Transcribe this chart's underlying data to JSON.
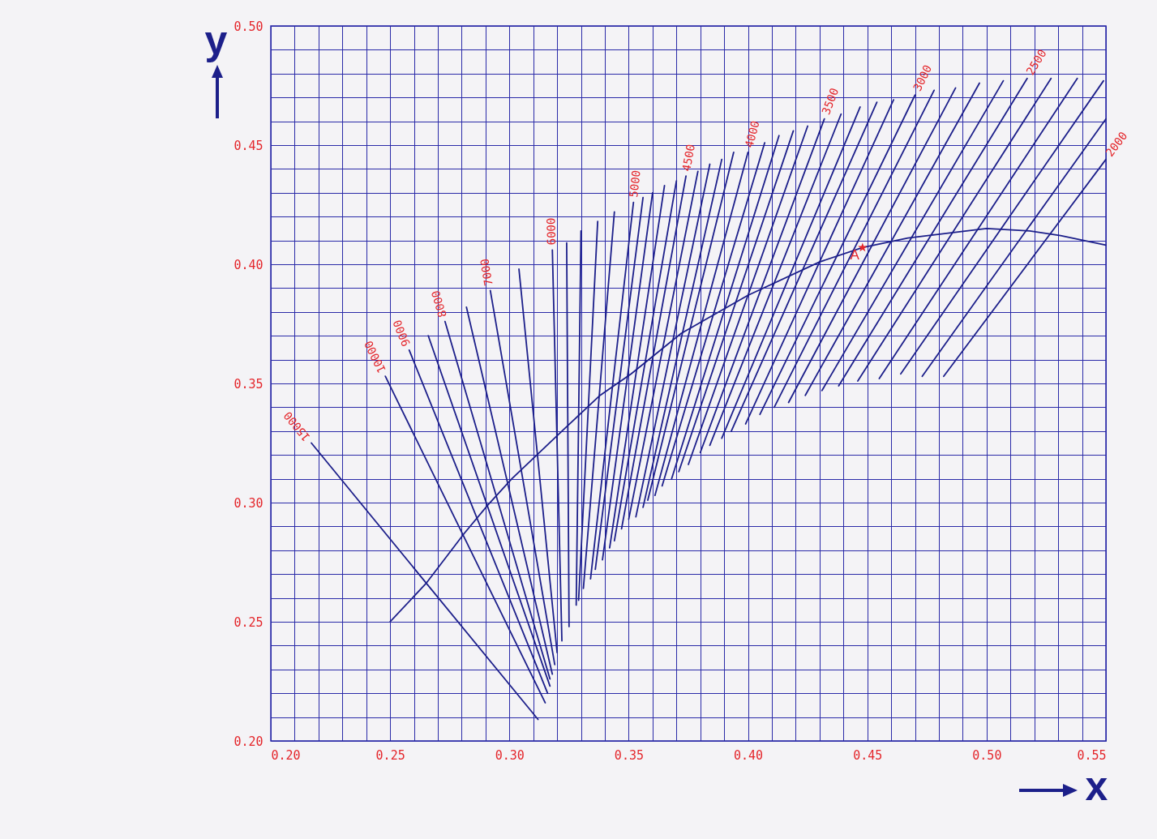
{
  "chart_data": {
    "type": "line",
    "xlabel": "x",
    "ylabel": "y",
    "xlim": [
      0.2,
      0.55
    ],
    "ylim": [
      0.2,
      0.5
    ],
    "xticks": [
      {
        "value": 0.2,
        "label": "0.20"
      },
      {
        "value": 0.21,
        "label": null
      },
      {
        "value": 0.22,
        "label": null
      },
      {
        "value": 0.23,
        "label": null
      },
      {
        "value": 0.24,
        "label": null
      },
      0.25,
      {
        "value": 0.26,
        "label": null
      },
      {
        "value": 0.27,
        "label": null
      },
      {
        "value": 0.28,
        "label": null
      },
      {
        "value": 0.29,
        "label": null
      },
      {
        "value": 0.3,
        "label": "0.30"
      },
      {
        "value": 0.31,
        "label": null
      },
      {
        "value": 0.32,
        "label": null
      },
      {
        "value": 0.33,
        "label": null
      },
      {
        "value": 0.34,
        "label": null
      },
      0.35,
      {
        "value": 0.36,
        "label": null
      },
      {
        "value": 0.37,
        "label": null
      },
      {
        "value": 0.38,
        "label": null
      },
      {
        "value": 0.39,
        "label": null
      },
      {
        "value": 0.4,
        "label": "0.40"
      },
      {
        "value": 0.41,
        "label": null
      },
      {
        "value": 0.42,
        "label": null
      },
      {
        "value": 0.43,
        "label": null
      },
      {
        "value": 0.44,
        "label": null
      },
      0.45,
      {
        "value": 0.46,
        "label": null
      },
      {
        "value": 0.47,
        "label": null
      },
      {
        "value": 0.48,
        "label": null
      },
      {
        "value": 0.49,
        "label": null
      },
      {
        "value": 0.5,
        "label": "0.50"
      },
      {
        "value": 0.51,
        "label": null
      },
      {
        "value": 0.52,
        "label": null
      },
      {
        "value": 0.53,
        "label": null
      },
      {
        "value": 0.54,
        "label": null
      },
      0.55
    ],
    "yticks": [
      {
        "value": 0.2,
        "label": "0.20"
      },
      {
        "value": 0.21,
        "label": null
      },
      {
        "value": 0.22,
        "label": null
      },
      {
        "value": 0.23,
        "label": null
      },
      {
        "value": 0.24,
        "label": null
      },
      0.25,
      {
        "value": 0.26,
        "label": null
      },
      {
        "value": 0.27,
        "label": null
      },
      {
        "value": 0.28,
        "label": null
      },
      {
        "value": 0.29,
        "label": null
      },
      {
        "value": 0.3,
        "label": "0.30"
      },
      {
        "value": 0.31,
        "label": null
      },
      {
        "value": 0.32,
        "label": null
      },
      {
        "value": 0.33,
        "label": null
      },
      {
        "value": 0.34,
        "label": null
      },
      0.35,
      {
        "value": 0.36,
        "label": null
      },
      {
        "value": 0.37,
        "label": null
      },
      {
        "value": 0.38,
        "label": null
      },
      {
        "value": 0.39,
        "label": null
      },
      {
        "value": 0.4,
        "label": "0.40"
      },
      {
        "value": 0.41,
        "label": null
      },
      {
        "value": 0.42,
        "label": null
      },
      {
        "value": 0.43,
        "label": null
      },
      {
        "value": 0.44,
        "label": null
      },
      0.45,
      {
        "value": 0.46,
        "label": null
      },
      {
        "value": 0.47,
        "label": null
      },
      {
        "value": 0.48,
        "label": null
      },
      {
        "value": 0.49,
        "label": null
      },
      {
        "value": 0.5,
        "label": "0.50"
      }
    ],
    "grid": true,
    "legend": false,
    "line_style": "solid",
    "annotations": [
      {
        "text": "A",
        "x": 0.448,
        "y": 0.407
      }
    ],
    "series": [
      {
        "color": "#1c1f8a",
        "x": [
          0.25,
          0.265,
          0.281,
          0.291,
          0.301,
          0.322,
          0.338,
          0.351,
          0.372,
          0.4,
          0.43,
          0.448,
          0.467,
          0.5,
          0.518,
          0.531,
          0.55
        ],
        "values": [
          0.25,
          0.266,
          0.287,
          0.299,
          0.31,
          0.33,
          0.345,
          0.354,
          0.371,
          0.387,
          0.401,
          0.407,
          0.411,
          0.415,
          0.414,
          0.412,
          0.408
        ]
      },
      {
        "name": "15000",
        "color": "#1c1f8a",
        "x": [
          0.312,
          0.217
        ],
        "values": [
          0.209,
          0.325
        ]
      },
      {
        "name": "10000",
        "color": "#1c1f8a",
        "x": [
          0.315,
          0.248
        ],
        "values": [
          0.216,
          0.353
        ]
      },
      {
        "name": "9000",
        "color": "#1c1f8a",
        "x": [
          0.316,
          0.258
        ],
        "values": [
          0.22,
          0.364
        ]
      },
      {
        "color": "#1c1f8a",
        "x": [
          0.317,
          0.266
        ],
        "values": [
          0.223,
          0.37
        ]
      },
      {
        "name": "8000",
        "color": "#1c1f8a",
        "x": [
          0.317,
          0.273
        ],
        "values": [
          0.226,
          0.376
        ]
      },
      {
        "color": "#1c1f8a",
        "x": [
          0.318,
          0.282
        ],
        "values": [
          0.228,
          0.382
        ]
      },
      {
        "name": "7000",
        "color": "#1c1f8a",
        "x": [
          0.319,
          0.292
        ],
        "values": [
          0.232,
          0.389
        ]
      },
      {
        "color": "#1c1f8a",
        "x": [
          0.32,
          0.304
        ],
        "values": [
          0.237,
          0.398
        ]
      },
      {
        "name": "6000",
        "color": "#1c1f8a",
        "x": [
          0.322,
          0.318
        ],
        "values": [
          0.242,
          0.406
        ]
      },
      {
        "color": "#1c1f8a",
        "x": [
          0.325,
          0.324
        ],
        "values": [
          0.248,
          0.409
        ]
      },
      {
        "color": "#1c1f8a",
        "x": [
          0.328,
          0.33
        ],
        "values": [
          0.257,
          0.414
        ]
      },
      {
        "color": "#1c1f8a",
        "x": [
          0.329,
          0.337
        ],
        "values": [
          0.259,
          0.418
        ]
      },
      {
        "color": "#1c1f8a",
        "x": [
          0.331,
          0.344
        ],
        "values": [
          0.264,
          0.422
        ]
      },
      {
        "name": "5000",
        "color": "#1c1f8a",
        "x": [
          0.334,
          0.352
        ],
        "values": [
          0.268,
          0.426
        ]
      },
      {
        "color": "#1c1f8a",
        "x": [
          0.336,
          0.356
        ],
        "values": [
          0.272,
          0.428
        ]
      },
      {
        "color": "#1c1f8a",
        "x": [
          0.339,
          0.36
        ],
        "values": [
          0.276,
          0.43
        ]
      },
      {
        "color": "#1c1f8a",
        "x": [
          0.342,
          0.365
        ],
        "values": [
          0.281,
          0.433
        ]
      },
      {
        "color": "#1c1f8a",
        "x": [
          0.344,
          0.37
        ],
        "values": [
          0.284,
          0.435
        ]
      },
      {
        "name": "4500",
        "color": "#1c1f8a",
        "x": [
          0.347,
          0.374
        ],
        "values": [
          0.289,
          0.437
        ]
      },
      {
        "color": "#1c1f8a",
        "x": [
          0.35,
          0.379
        ],
        "values": [
          0.293,
          0.439
        ]
      },
      {
        "color": "#1c1f8a",
        "x": [
          0.353,
          0.384
        ],
        "values": [
          0.294,
          0.442
        ]
      },
      {
        "color": "#1c1f8a",
        "x": [
          0.356,
          0.389
        ],
        "values": [
          0.298,
          0.444
        ]
      },
      {
        "color": "#1c1f8a",
        "x": [
          0.358,
          0.394
        ],
        "values": [
          0.301,
          0.447
        ]
      },
      {
        "name": "4000",
        "color": "#1c1f8a",
        "x": [
          0.361,
          0.4
        ],
        "values": [
          0.303,
          0.447
        ]
      },
      {
        "color": "#1c1f8a",
        "x": [
          0.364,
          0.407
        ],
        "values": [
          0.307,
          0.451
        ]
      },
      {
        "color": "#1c1f8a",
        "x": [
          0.368,
          0.413
        ],
        "values": [
          0.31,
          0.454
        ]
      },
      {
        "color": "#1c1f8a",
        "x": [
          0.371,
          0.419
        ],
        "values": [
          0.313,
          0.456
        ]
      },
      {
        "color": "#1c1f8a",
        "x": [
          0.375,
          0.425
        ],
        "values": [
          0.316,
          0.458
        ]
      },
      {
        "name": "3500",
        "color": "#1c1f8a",
        "x": [
          0.38,
          0.432
        ],
        "values": [
          0.321,
          0.461
        ]
      },
      {
        "color": "#1c1f8a",
        "x": [
          0.384,
          0.439
        ],
        "values": [
          0.324,
          0.463
        ]
      },
      {
        "color": "#1c1f8a",
        "x": [
          0.389,
          0.447
        ],
        "values": [
          0.327,
          0.466
        ]
      },
      {
        "color": "#1c1f8a",
        "x": [
          0.393,
          0.454
        ],
        "values": [
          0.33,
          0.468
        ]
      },
      {
        "color": "#1c1f8a",
        "x": [
          0.399,
          0.461
        ],
        "values": [
          0.333,
          0.469
        ]
      },
      {
        "name": "3000",
        "color": "#1c1f8a",
        "x": [
          0.405,
          0.47
        ],
        "values": [
          0.337,
          0.471
        ]
      },
      {
        "color": "#1c1f8a",
        "x": [
          0.411,
          0.478
        ],
        "values": [
          0.34,
          0.473
        ]
      },
      {
        "color": "#1c1f8a",
        "x": [
          0.417,
          0.487
        ],
        "values": [
          0.342,
          0.474
        ]
      },
      {
        "color": "#1c1f8a",
        "x": [
          0.424,
          0.497
        ],
        "values": [
          0.345,
          0.476
        ]
      },
      {
        "color": "#1c1f8a",
        "x": [
          0.431,
          0.507
        ],
        "values": [
          0.347,
          0.477
        ]
      },
      {
        "name": "2500",
        "color": "#1c1f8a",
        "x": [
          0.438,
          0.517
        ],
        "values": [
          0.349,
          0.478
        ]
      },
      {
        "color": "#1c1f8a",
        "x": [
          0.446,
          0.527
        ],
        "values": [
          0.351,
          0.478
        ]
      },
      {
        "color": "#1c1f8a",
        "x": [
          0.455,
          0.538
        ],
        "values": [
          0.352,
          0.478
        ]
      },
      {
        "color": "#1c1f8a",
        "x": [
          0.464,
          0.549
        ],
        "values": [
          0.354,
          0.477
        ]
      },
      {
        "color": "#1c1f8a",
        "x": [
          0.473,
          0.55
        ],
        "values": [
          0.353,
          0.461
        ]
      },
      {
        "name": "2000",
        "color": "#1c1f8a",
        "x": [
          0.482,
          0.55
        ],
        "values": [
          0.353,
          0.444
        ]
      },
      {
        "type": "scatter",
        "marker": "star",
        "color": "#e4262b",
        "x": [
          0.448
        ],
        "values": [
          0.407
        ]
      }
    ]
  }
}
